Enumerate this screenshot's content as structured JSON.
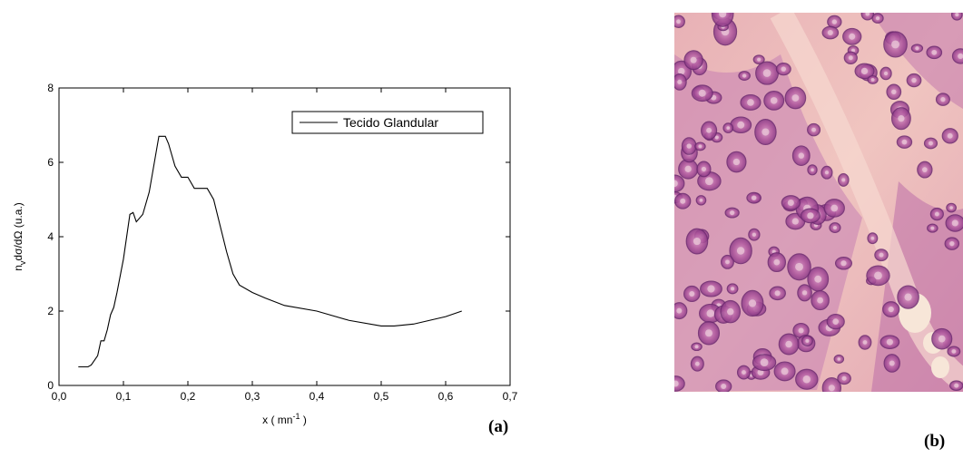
{
  "chart_data": {
    "type": "line",
    "x_label": {
      "main": "x ( mn",
      "sup": "-1",
      "rest": " )"
    },
    "y_label": {
      "main": "n",
      "sub": "v",
      "rest": "dσ/dΩ (u.a.)"
    },
    "x": [
      0.03,
      0.045,
      0.05,
      0.06,
      0.065,
      0.07,
      0.075,
      0.08,
      0.085,
      0.09,
      0.1,
      0.105,
      0.11,
      0.115,
      0.12,
      0.13,
      0.14,
      0.15,
      0.155,
      0.165,
      0.17,
      0.18,
      0.19,
      0.2,
      0.21,
      0.22,
      0.23,
      0.24,
      0.25,
      0.26,
      0.27,
      0.28,
      0.3,
      0.32,
      0.35,
      0.4,
      0.45,
      0.5,
      0.52,
      0.55,
      0.6,
      0.625
    ],
    "series": [
      {
        "name": "Tecido Glandular",
        "color": "#000000",
        "values": [
          0.5,
          0.5,
          0.55,
          0.8,
          1.2,
          1.2,
          1.5,
          1.9,
          2.1,
          2.5,
          3.4,
          4.0,
          4.6,
          4.65,
          4.4,
          4.6,
          5.2,
          6.2,
          6.7,
          6.7,
          6.5,
          5.9,
          5.6,
          5.6,
          5.3,
          5.3,
          5.3,
          5.0,
          4.3,
          3.6,
          3.0,
          2.7,
          2.5,
          2.35,
          2.15,
          2.0,
          1.75,
          1.6,
          1.6,
          1.65,
          1.85,
          2.0
        ]
      }
    ],
    "xlim": [
      0,
      0.7
    ],
    "xticks": [
      {
        "value": 0,
        "label": "0,0"
      },
      {
        "value": 0.1,
        "label": "0,1"
      },
      {
        "value": 0.2,
        "label": "0,2"
      },
      {
        "value": 0.3,
        "label": "0,3"
      },
      {
        "value": 0.4,
        "label": "0,4"
      },
      {
        "value": 0.5,
        "label": "0,5"
      },
      {
        "value": 0.6,
        "label": "0,6"
      },
      {
        "value": 0.7,
        "label": "0,7"
      }
    ],
    "ylim": [
      0,
      8
    ],
    "yticks": [
      0,
      2,
      4,
      6,
      8
    ],
    "legend": "upper right"
  },
  "panels": {
    "a": "(a)",
    "b": "(b)"
  }
}
